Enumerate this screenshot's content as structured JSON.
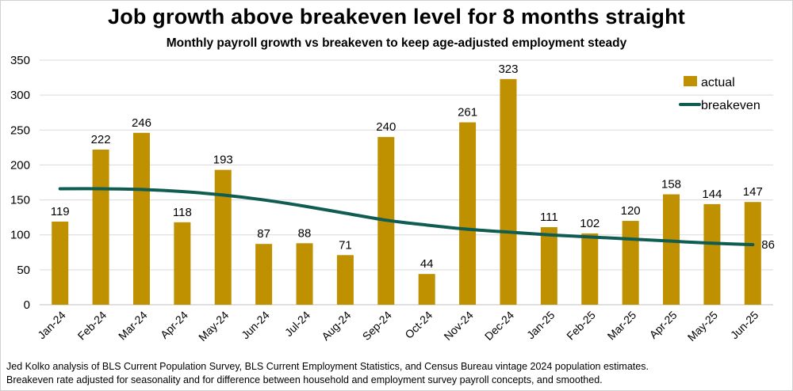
{
  "title": "Job growth above breakeven level for 8 months straight",
  "subtitle": "Monthly payroll growth vs breakeven to keep age-adjusted employment steady",
  "footnotes": [
    "Jed Kolko analysis of BLS Current Population Survey, BLS Current Employment Statistics, and Census Bureau vintage 2024 population estimates.",
    "Breakeven rate adjusted for seasonality and for difference between household and employment survey payroll concepts, and smoothed."
  ],
  "colors": {
    "bar": "#BF9000",
    "line": "#0E5C52",
    "grid": "#d9d9d9"
  },
  "chart_data": {
    "type": "bar",
    "title": "Job growth above breakeven level for 8 months straight",
    "subtitle": "Monthly payroll growth vs breakeven to keep age-adjusted employment steady",
    "xlabel": "",
    "ylabel": "",
    "categories": [
      "Jan-24",
      "Feb-24",
      "Mar-24",
      "Apr-24",
      "May-24",
      "Jun-24",
      "Jul-24",
      "Aug-24",
      "Sep-24",
      "Oct-24",
      "Nov-24",
      "Dec-24",
      "Jan-25",
      "Feb-25",
      "Mar-25",
      "Apr-25",
      "May-25",
      "Jun-25"
    ],
    "series": [
      {
        "name": "actual",
        "type": "bar",
        "values": [
          119,
          222,
          246,
          118,
          193,
          87,
          88,
          71,
          240,
          44,
          261,
          323,
          111,
          102,
          120,
          158,
          144,
          147
        ],
        "labels": [
          "119",
          "222",
          "246",
          "118",
          "193",
          "87",
          "88",
          "71",
          "240",
          "44",
          "261",
          "323",
          "111",
          "102",
          "120",
          "158",
          "144",
          "147"
        ]
      },
      {
        "name": "breakeven",
        "type": "line",
        "values": [
          166,
          166,
          165,
          162,
          157,
          150,
          141,
          131,
          121,
          114,
          108,
          104,
          100,
          97,
          94,
          91,
          88,
          86
        ],
        "end_label": "86"
      }
    ],
    "ylim": [
      0,
      350
    ],
    "yticks": [
      "0",
      "50",
      "100",
      "150",
      "200",
      "250",
      "300",
      "350"
    ],
    "ytick_values": [
      0,
      50,
      100,
      150,
      200,
      250,
      300,
      350
    ],
    "grid": true,
    "legend": "top-right"
  }
}
